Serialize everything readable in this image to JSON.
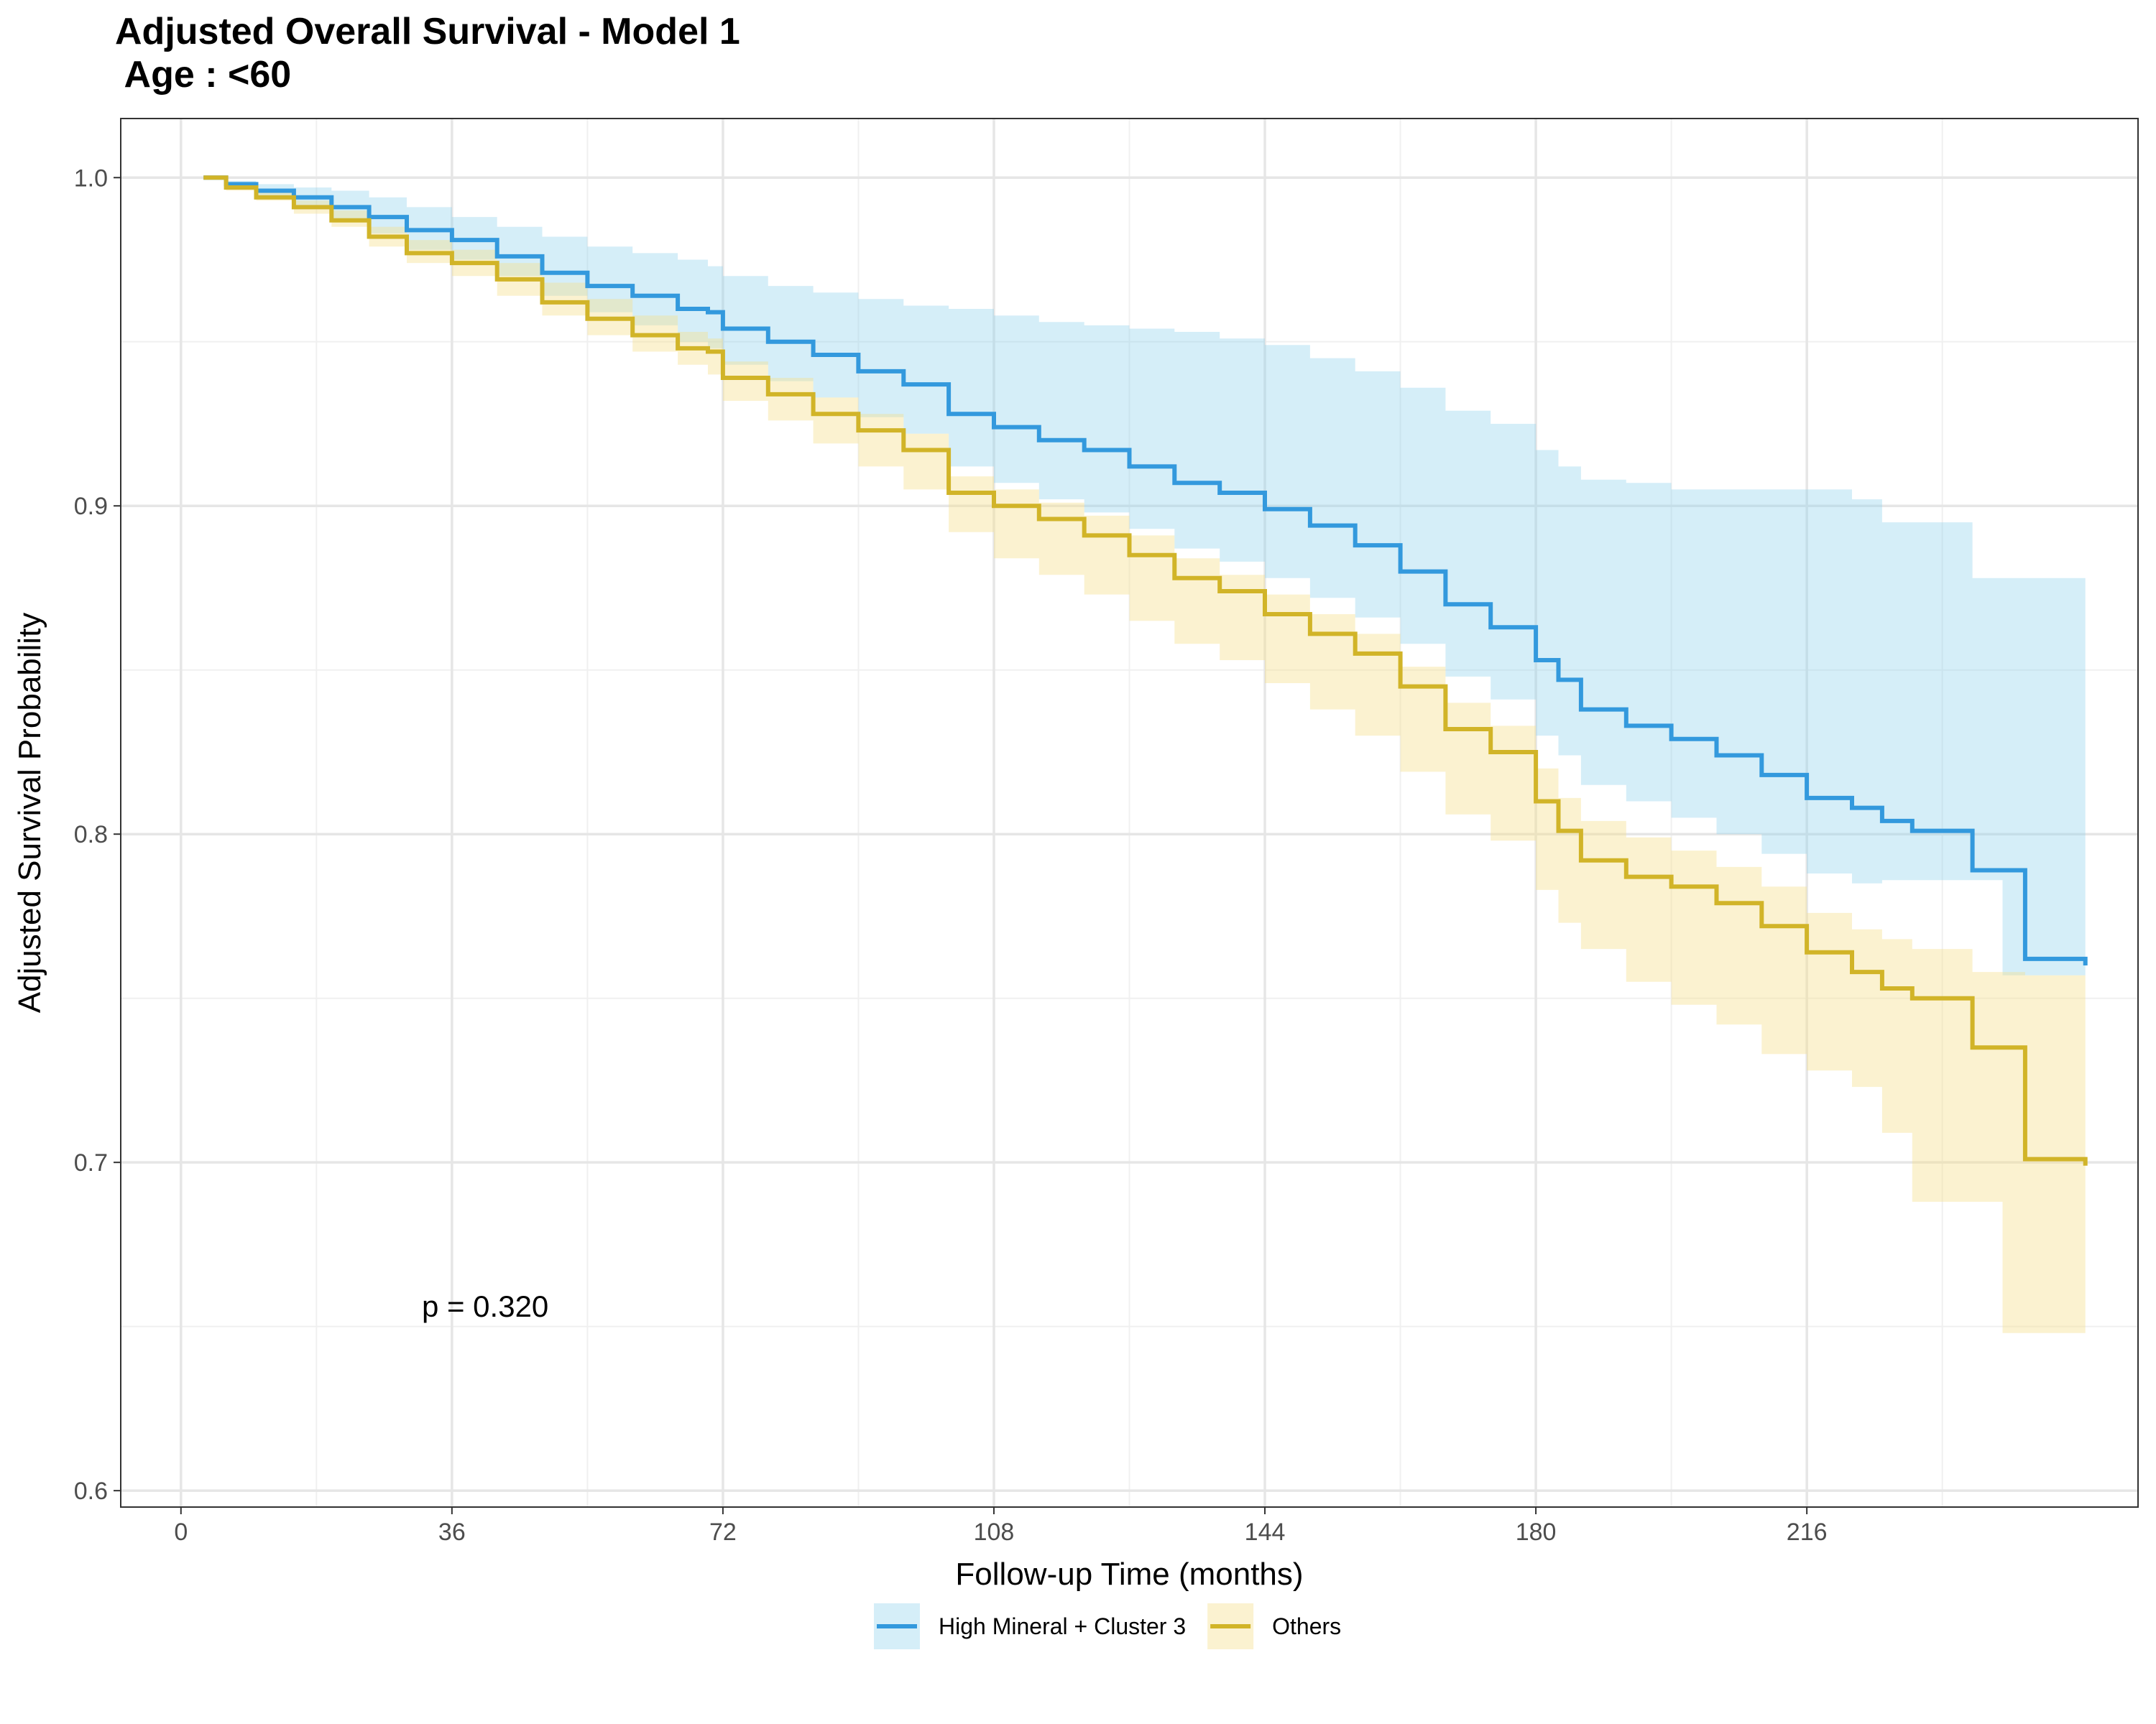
{
  "chart_data": {
    "type": "line",
    "title": "Adjusted Overall Survival - Model 1\n Age : <60",
    "xlabel": "Follow-up Time (months)",
    "ylabel": "Adjusted Survival Probability",
    "xlim": [
      -8,
      260
    ],
    "ylim": [
      0.595,
      1.018
    ],
    "xticks": [
      0,
      36,
      72,
      108,
      144,
      180,
      216
    ],
    "yticks": [
      0.6,
      0.7,
      0.8,
      0.9,
      1.0
    ],
    "ytick_labels": [
      "0.6",
      "0.7",
      "0.8",
      "0.9",
      "1.0"
    ],
    "grid": true,
    "legend_position": "bottom",
    "annotation": {
      "text": "p = 0.320",
      "x": 32,
      "y": 0.653
    },
    "series": [
      {
        "name": "High Mineral + Cluster 3",
        "color": "#3399DD",
        "band_color": "#87CEEB",
        "x": [
          3,
          6,
          10,
          15,
          20,
          25,
          30,
          36,
          42,
          48,
          54,
          60,
          66,
          70,
          72,
          78,
          84,
          90,
          96,
          102,
          108,
          114,
          120,
          126,
          132,
          138,
          144,
          150,
          156,
          162,
          168,
          174,
          180,
          183,
          186,
          192,
          198,
          204,
          210,
          216,
          222,
          226,
          230,
          238,
          242,
          245,
          253
        ],
        "y": [
          1.0,
          0.998,
          0.996,
          0.994,
          0.991,
          0.988,
          0.984,
          0.981,
          0.976,
          0.971,
          0.967,
          0.964,
          0.96,
          0.959,
          0.954,
          0.95,
          0.946,
          0.941,
          0.937,
          0.928,
          0.924,
          0.92,
          0.917,
          0.912,
          0.907,
          0.904,
          0.899,
          0.894,
          0.888,
          0.88,
          0.87,
          0.863,
          0.853,
          0.847,
          0.838,
          0.833,
          0.829,
          0.824,
          0.818,
          0.811,
          0.808,
          0.804,
          0.801,
          0.789,
          0.789,
          0.762,
          0.76
        ],
        "lower": [
          1.0,
          0.997,
          0.994,
          0.991,
          0.987,
          0.983,
          0.978,
          0.975,
          0.97,
          0.964,
          0.959,
          0.955,
          0.95,
          0.948,
          0.943,
          0.938,
          0.933,
          0.927,
          0.922,
          0.912,
          0.907,
          0.902,
          0.898,
          0.893,
          0.887,
          0.883,
          0.878,
          0.872,
          0.866,
          0.858,
          0.848,
          0.841,
          0.83,
          0.824,
          0.815,
          0.81,
          0.805,
          0.8,
          0.794,
          0.788,
          0.785,
          0.786,
          0.786,
          0.786,
          0.757,
          0.757,
          0.757
        ],
        "upper": [
          1.0,
          0.999,
          0.998,
          0.997,
          0.996,
          0.994,
          0.991,
          0.988,
          0.985,
          0.982,
          0.979,
          0.977,
          0.975,
          0.973,
          0.97,
          0.967,
          0.965,
          0.963,
          0.961,
          0.96,
          0.958,
          0.956,
          0.955,
          0.954,
          0.953,
          0.951,
          0.949,
          0.945,
          0.941,
          0.936,
          0.929,
          0.925,
          0.917,
          0.912,
          0.908,
          0.907,
          0.905,
          0.905,
          0.905,
          0.905,
          0.902,
          0.895,
          0.895,
          0.878,
          0.878,
          0.878,
          0.878
        ]
      },
      {
        "name": "Others",
        "color": "#D1B428",
        "band_color": "#F5DE8A",
        "x": [
          3,
          6,
          10,
          15,
          20,
          25,
          30,
          36,
          42,
          48,
          54,
          60,
          66,
          70,
          72,
          78,
          84,
          90,
          96,
          102,
          108,
          114,
          120,
          126,
          132,
          138,
          144,
          150,
          156,
          162,
          168,
          174,
          180,
          183,
          186,
          192,
          198,
          204,
          210,
          216,
          222,
          226,
          230,
          238,
          242,
          245,
          253
        ],
        "y": [
          1.0,
          0.997,
          0.994,
          0.991,
          0.987,
          0.982,
          0.977,
          0.974,
          0.969,
          0.962,
          0.957,
          0.952,
          0.948,
          0.947,
          0.939,
          0.934,
          0.928,
          0.923,
          0.917,
          0.904,
          0.9,
          0.896,
          0.891,
          0.885,
          0.878,
          0.874,
          0.867,
          0.861,
          0.855,
          0.845,
          0.832,
          0.825,
          0.81,
          0.801,
          0.792,
          0.787,
          0.784,
          0.779,
          0.772,
          0.764,
          0.758,
          0.753,
          0.75,
          0.735,
          0.735,
          0.701,
          0.699
        ],
        "lower": [
          1.0,
          0.996,
          0.993,
          0.989,
          0.985,
          0.979,
          0.974,
          0.97,
          0.964,
          0.958,
          0.952,
          0.947,
          0.943,
          0.94,
          0.932,
          0.926,
          0.919,
          0.912,
          0.905,
          0.892,
          0.884,
          0.879,
          0.873,
          0.865,
          0.858,
          0.853,
          0.846,
          0.838,
          0.83,
          0.819,
          0.806,
          0.798,
          0.783,
          0.773,
          0.765,
          0.755,
          0.748,
          0.742,
          0.733,
          0.728,
          0.723,
          0.709,
          0.688,
          0.688,
          0.648,
          0.648,
          0.648
        ],
        "upper": [
          1.0,
          0.998,
          0.996,
          0.993,
          0.99,
          0.985,
          0.981,
          0.978,
          0.974,
          0.968,
          0.963,
          0.958,
          0.953,
          0.951,
          0.944,
          0.939,
          0.933,
          0.928,
          0.922,
          0.909,
          0.905,
          0.901,
          0.897,
          0.891,
          0.884,
          0.879,
          0.873,
          0.867,
          0.861,
          0.851,
          0.84,
          0.833,
          0.82,
          0.811,
          0.804,
          0.799,
          0.795,
          0.79,
          0.784,
          0.776,
          0.771,
          0.768,
          0.765,
          0.758,
          0.758,
          0.757,
          0.757
        ]
      }
    ]
  }
}
